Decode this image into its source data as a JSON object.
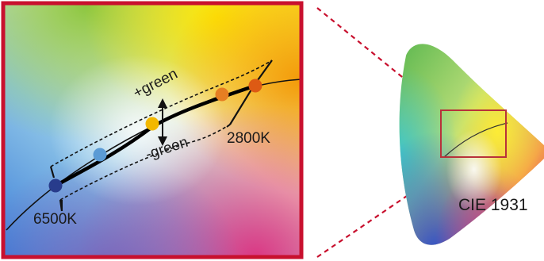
{
  "diagram": {
    "labels": {
      "plus_green": "+green",
      "minus_green": "-green",
      "cct_low": "6500K",
      "cct_high": "2800K",
      "space_name": "CIE 1931"
    },
    "colors": {
      "frame_border": "#c8102e",
      "zoom_lines": "#c8102e",
      "inset_box": "#b8323a",
      "point_6500k": "#283c8c",
      "point_cool": "#5b9bd5",
      "point_neutral": "#f2b800",
      "point_warm": "#e67e22",
      "point_2800k": "#dd5a14"
    }
  }
}
